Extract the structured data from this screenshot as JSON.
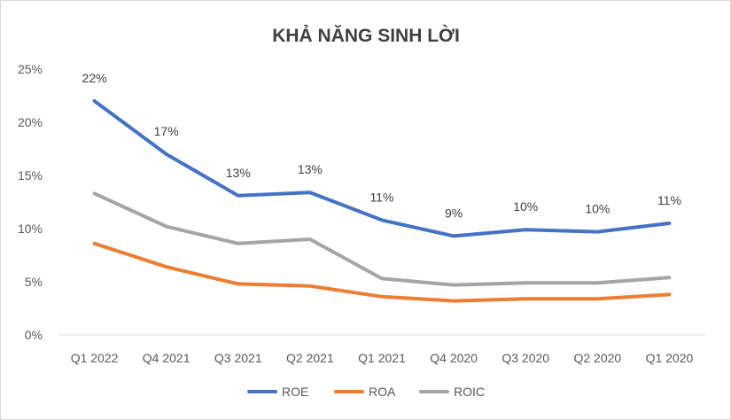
{
  "chart_data": {
    "type": "line",
    "title": "KHẢ NĂNG SINH LỜI",
    "xlabel": "",
    "ylabel": "",
    "categories": [
      "Q1 2022",
      "Q4 2021",
      "Q3 2021",
      "Q2 2021",
      "Q1 2021",
      "Q4 2020",
      "Q3 2020",
      "Q2 2020",
      "Q1 2020"
    ],
    "ylim": [
      0,
      25
    ],
    "yticks": [
      0,
      5,
      10,
      15,
      20,
      25
    ],
    "ytick_labels": [
      "0%",
      "5%",
      "10%",
      "15%",
      "20%",
      "25%"
    ],
    "grid": false,
    "legend_position": "bottom",
    "series": [
      {
        "name": "ROE",
        "color": "#4472c4",
        "values": [
          22.0,
          17.0,
          13.1,
          13.4,
          10.8,
          9.3,
          9.9,
          9.7,
          10.5
        ],
        "data_labels": [
          "22%",
          "17%",
          "13%",
          "13%",
          "11%",
          "9%",
          "10%",
          "10%",
          "11%"
        ]
      },
      {
        "name": "ROA",
        "color": "#ed7d31",
        "values": [
          8.6,
          6.4,
          4.8,
          4.6,
          3.6,
          3.2,
          3.4,
          3.4,
          3.8
        ]
      },
      {
        "name": "ROIC",
        "color": "#a5a5a5",
        "values": [
          13.3,
          10.2,
          8.6,
          9.0,
          5.3,
          4.7,
          4.9,
          4.9,
          5.4
        ]
      }
    ]
  }
}
